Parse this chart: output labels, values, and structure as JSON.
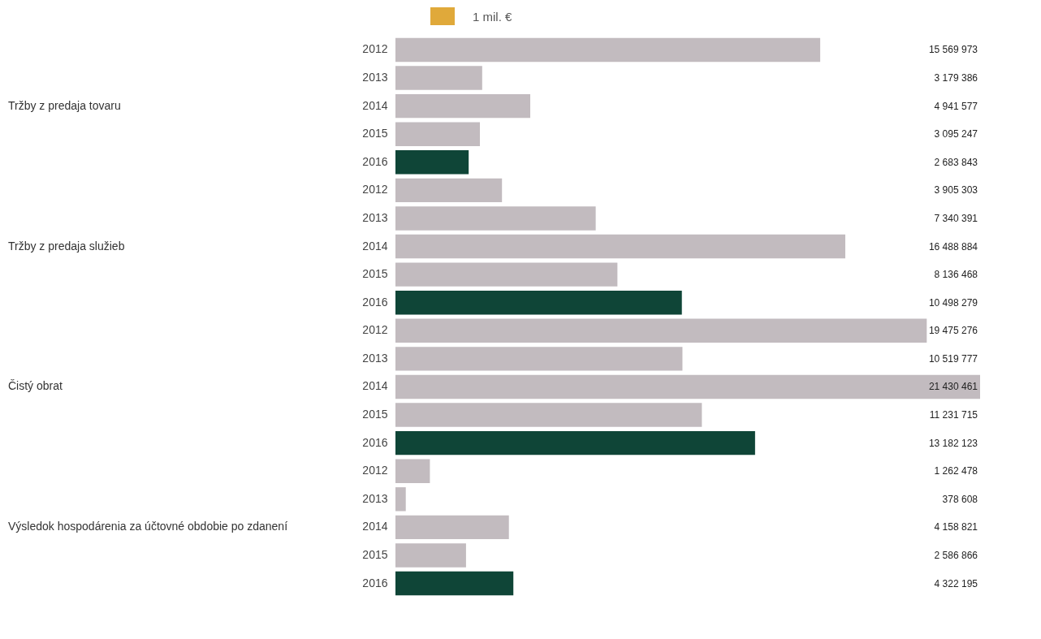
{
  "chart_data": {
    "type": "bar",
    "orientation": "horizontal",
    "tick_labels": "y",
    "annotations": [
      "1 mil. €",
      "Tržby z predaja tovaru",
      "Tržby z predaja služieb",
      "Čistý obrat",
      "Výsledok hospodárenia za účtovné obdobie po zdanení"
    ],
    "categories": [
      "2012",
      "2013",
      "2014",
      "2015",
      "2016",
      "2012",
      "2013",
      "2014",
      "2015",
      "2016",
      "2012",
      "2013",
      "2014",
      "2015",
      "2016",
      "2012",
      "2013",
      "2014",
      "2015",
      "2016"
    ],
    "values": [
      15569973,
      3179386,
      4941577,
      3095247,
      2683843,
      3905303,
      7340391,
      16488884,
      8136468,
      10498279,
      19475276,
      10519777,
      21430461,
      11231715,
      13182123,
      1262478,
      378608,
      4158821,
      2586866,
      4322195
    ],
    "value_labels": [
      "15 569 973",
      "3 179 386",
      "4 941 577",
      "3 095 247",
      "2 683 843",
      "3 905 303",
      "7 340 391",
      "16 488 884",
      "8 136 468",
      "10 498 279",
      "19 475 276",
      "10 519 777",
      "21 430 461",
      "11 231 715",
      "13 182 123",
      "1 262 478",
      "378 608",
      "4 158 821",
      "2 586 866",
      "4 322 195"
    ],
    "colors": [
      "#c2bbbf",
      "#c2bbbf",
      "#c2bbbf",
      "#c2bbbf",
      "#0f4537",
      "#c2bbbf",
      "#c2bbbf",
      "#c2bbbf",
      "#c2bbbf",
      "#0f4537",
      "#c2bbbf",
      "#c2bbbf",
      "#c2bbbf",
      "#c2bbbf",
      "#0f4537",
      "#c2bbbf",
      "#c2bbbf",
      "#c2bbbf",
      "#c2bbbf",
      "#0f4537"
    ]
  }
}
